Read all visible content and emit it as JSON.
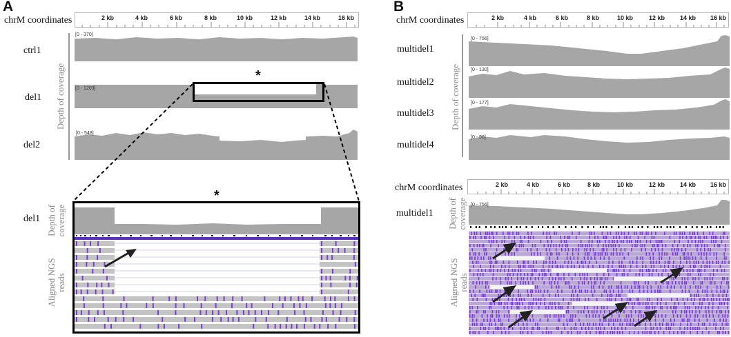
{
  "panel_a": {
    "letter": "A",
    "coord_title": "chrM coordinates",
    "ticks": [
      "2 kb",
      "4 kb",
      "6 kb",
      "8 kb",
      "10 kb",
      "12 kb",
      "14 kb",
      "16 kb"
    ],
    "depth_label": "Depth of coverage",
    "tracks": [
      {
        "name": "ctrl1",
        "range": "[0 - 370]"
      },
      {
        "name": "del1",
        "range": "[0 - 1203]"
      },
      {
        "name": "del2",
        "range": "[0 - 548]"
      }
    ],
    "star": "*",
    "zoom": {
      "name": "del1",
      "star": "*",
      "depth_label_1": "Depth of",
      "depth_label_2": "coverage",
      "reads_label_1": "Aligned NGS",
      "reads_label_2": "reads"
    }
  },
  "panel_b": {
    "letter": "B",
    "coord_title": "chrM coordinates",
    "ticks": [
      "2 kb",
      "4 kb",
      "6 kb",
      "8 kb",
      "10 kb",
      "12 kb",
      "14 kb",
      "16 kb"
    ],
    "depth_label": "Depth of coverage",
    "tracks": [
      {
        "name": "multidel1",
        "range": "[0 - 756]"
      },
      {
        "name": "multidel2",
        "range": "[0 - 130]"
      },
      {
        "name": "multidel3",
        "range": "[0 - 177]"
      },
      {
        "name": "multidel4",
        "range": "[0 - 96]"
      }
    ],
    "lower": {
      "coord_title": "chrM coordinates",
      "ticks": [
        "2 kb",
        "4 kb",
        "6 kb",
        "8 kb",
        "10 kb",
        "12 kb",
        "14 kb",
        "16 kb"
      ],
      "name": "multidel1",
      "range": "[0 - 756]",
      "depth_label_1": "Depth of",
      "depth_label_2": "coverage",
      "reads_label_1": "Aligned NGS",
      "reads_label_2": "reads"
    }
  },
  "colors": {
    "coverage": "#a6a6a6",
    "read_gray": "#c4c4c4",
    "mismatch": "#7a3fd0",
    "frame": "#000000"
  }
}
